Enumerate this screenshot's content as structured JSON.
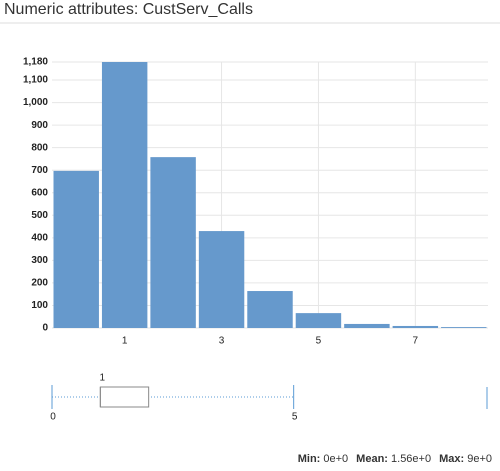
{
  "header": {
    "title": "Numeric attributes: CustServ_Calls"
  },
  "chart_data": [
    {
      "type": "bar",
      "categories": [
        null,
        "1",
        null,
        "3",
        null,
        "5",
        null,
        "7",
        null
      ],
      "values": [
        697,
        1180,
        758,
        430,
        164,
        66,
        18,
        9,
        4
      ],
      "color": "#6699cc",
      "ylim": [
        0,
        1180
      ],
      "yticks": [
        0,
        100,
        200,
        300,
        400,
        500,
        600,
        700,
        800,
        900,
        {
          "value": 1000,
          "label": "1,000"
        },
        {
          "value": 1100,
          "label": "1,100"
        },
        {
          "value": 1180,
          "label": "1,180"
        }
      ],
      "grid": true
    },
    {
      "type": "box",
      "min": 0,
      "q1": 1,
      "median": 1,
      "q3": 2,
      "whisker_high": 5,
      "max": 9,
      "xlim": [
        0,
        9
      ],
      "xticks": [
        0,
        5
      ],
      "color": "#5b9bd5"
    }
  ],
  "stats": [
    {
      "label": "Min:",
      "value": "0e+0"
    },
    {
      "label": "Mean:",
      "value": "1.56e+0"
    },
    {
      "label": "Max:",
      "value": "9e+0"
    }
  ]
}
